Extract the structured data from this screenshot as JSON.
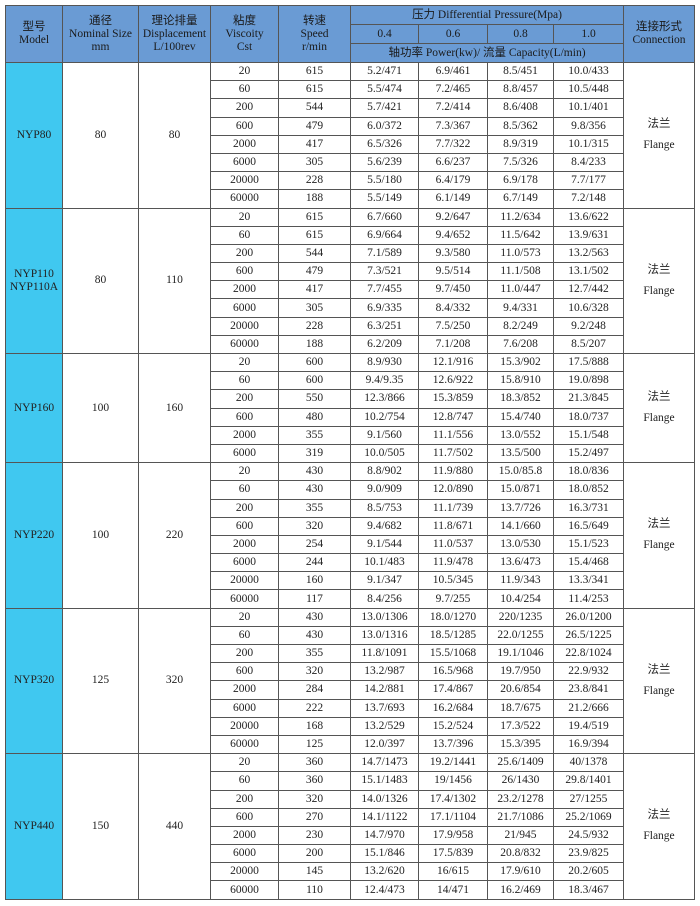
{
  "colors": {
    "header_bg": "#6a9bd4",
    "model_bg": "#40c8f0",
    "border": "#555555"
  },
  "header": {
    "model": {
      "cn": "型号",
      "en": "Model"
    },
    "nominal": {
      "cn": "通径",
      "en": "Nominal Size",
      "unit": "mm"
    },
    "displacement": {
      "cn": "理论排量",
      "en": "Displacement",
      "unit": "L/100rev"
    },
    "viscosity": {
      "cn": "粘度",
      "en": "Viscoity",
      "unit": "Cst"
    },
    "speed": {
      "cn": "转速",
      "en": "Speed",
      "unit": "r/min"
    },
    "pressure": {
      "label": "压力 Differential Pressure(Mpa)",
      "values": [
        "0.4",
        "0.6",
        "0.8",
        "1.0"
      ],
      "sublabel": "轴功率 Power(kw)/ 流量 Capacity(L/min)"
    },
    "connection": {
      "cn": "连接形式",
      "en": "Connection"
    }
  },
  "groups": [
    {
      "model": [
        "NYP80"
      ],
      "nominal": "80",
      "displacement": "80",
      "connection": {
        "cn": "法兰",
        "en": "Flange"
      },
      "rows": [
        [
          "20",
          "615",
          "5.2/471",
          "6.9/461",
          "8.5/451",
          "10.0/433"
        ],
        [
          "60",
          "615",
          "5.5/474",
          "7.2/465",
          "8.8/457",
          "10.5/448"
        ],
        [
          "200",
          "544",
          "5.7/421",
          "7.2/414",
          "8.6/408",
          "10.1/401"
        ],
        [
          "600",
          "479",
          "6.0/372",
          "7.3/367",
          "8.5/362",
          "9.8/356"
        ],
        [
          "2000",
          "417",
          "6.5/326",
          "7.7/322",
          "8.9/319",
          "10.1/315"
        ],
        [
          "6000",
          "305",
          "5.6/239",
          "6.6/237",
          "7.5/326",
          "8.4/233"
        ],
        [
          "20000",
          "228",
          "5.5/180",
          "6.4/179",
          "6.9/178",
          "7.7/177"
        ],
        [
          "60000",
          "188",
          "5.5/149",
          "6.1/149",
          "6.7/149",
          "7.2/148"
        ]
      ]
    },
    {
      "model": [
        "NYP110",
        "NYP110A"
      ],
      "nominal": "80",
      "displacement": "110",
      "connection": {
        "cn": "法兰",
        "en": "Flange"
      },
      "rows": [
        [
          "20",
          "615",
          "6.7/660",
          "9.2/647",
          "11.2/634",
          "13.6/622"
        ],
        [
          "60",
          "615",
          "6.9/664",
          "9.4/652",
          "11.5/642",
          "13.9/631"
        ],
        [
          "200",
          "544",
          "7.1/589",
          "9.3/580",
          "11.0/573",
          "13.2/563"
        ],
        [
          "600",
          "479",
          "7.3/521",
          "9.5/514",
          "11.1/508",
          "13.1/502"
        ],
        [
          "2000",
          "417",
          "7.7/455",
          "9.7/450",
          "11.0/447",
          "12.7/442"
        ],
        [
          "6000",
          "305",
          "6.9/335",
          "8.4/332",
          "9.4/331",
          "10.6/328"
        ],
        [
          "20000",
          "228",
          "6.3/251",
          "7.5/250",
          "8.2/249",
          "9.2/248"
        ],
        [
          "60000",
          "188",
          "6.2/209",
          "7.1/208",
          "7.6/208",
          "8.5/207"
        ]
      ]
    },
    {
      "model": [
        "NYP160"
      ],
      "nominal": "100",
      "displacement": "160",
      "connection": {
        "cn": "法兰",
        "en": "Flange"
      },
      "rows": [
        [
          "20",
          "600",
          "8.9/930",
          "12.1/916",
          "15.3/902",
          "17.5/888"
        ],
        [
          "60",
          "600",
          "9.4/9.35",
          "12.6/922",
          "15.8/910",
          "19.0/898"
        ],
        [
          "200",
          "550",
          "12.3/866",
          "15.3/859",
          "18.3/852",
          "21.3/845"
        ],
        [
          "600",
          "480",
          "10.2/754",
          "12.8/747",
          "15.4/740",
          "18.0/737"
        ],
        [
          "2000",
          "355",
          "9.1/560",
          "11.1/556",
          "13.0/552",
          "15.1/548"
        ],
        [
          "6000",
          "319",
          "10.0/505",
          "11.7/502",
          "13.5/500",
          "15.2/497"
        ]
      ]
    },
    {
      "model": [
        "NYP220"
      ],
      "nominal": "100",
      "displacement": "220",
      "connection": {
        "cn": "法兰",
        "en": "Flange"
      },
      "rows": [
        [
          "20",
          "430",
          "8.8/902",
          "11.9/880",
          "15.0/85.8",
          "18.0/836"
        ],
        [
          "60",
          "430",
          "9.0/909",
          "12.0/890",
          "15.0/871",
          "18.0/852"
        ],
        [
          "200",
          "355",
          "8.5/753",
          "11.1/739",
          "13.7/726",
          "16.3/731"
        ],
        [
          "600",
          "320",
          "9.4/682",
          "11.8/671",
          "14.1/660",
          "16.5/649"
        ],
        [
          "2000",
          "254",
          "9.1/544",
          "11.0/537",
          "13.0/530",
          "15.1/523"
        ],
        [
          "6000",
          "244",
          "10.1/483",
          "11.9/478",
          "13.6/473",
          "15.4/468"
        ],
        [
          "20000",
          "160",
          "9.1/347",
          "10.5/345",
          "11.9/343",
          "13.3/341"
        ],
        [
          "60000",
          "117",
          "8.4/256",
          "9.7/255",
          "10.4/254",
          "11.4/253"
        ]
      ]
    },
    {
      "model": [
        "NYP320"
      ],
      "nominal": "125",
      "displacement": "320",
      "connection": {
        "cn": "法兰",
        "en": "Flange"
      },
      "rows": [
        [
          "20",
          "430",
          "13.0/1306",
          "18.0/1270",
          "220/1235",
          "26.0/1200"
        ],
        [
          "60",
          "430",
          "13.0/1316",
          "18.5/1285",
          "22.0/1255",
          "26.5/1225"
        ],
        [
          "200",
          "355",
          "11.8/1091",
          "15.5/1068",
          "19.1/1046",
          "22.8/1024"
        ],
        [
          "600",
          "320",
          "13.2/987",
          "16.5/968",
          "19.7/950",
          "22.9/932"
        ],
        [
          "2000",
          "284",
          "14.2/881",
          "17.4/867",
          "20.6/854",
          "23.8/841"
        ],
        [
          "6000",
          "222",
          "13.7/693",
          "16.2/684",
          "18.7/675",
          "21.2/666"
        ],
        [
          "20000",
          "168",
          "13.2/529",
          "15.2/524",
          "17.3/522",
          "19.4/519"
        ],
        [
          "60000",
          "125",
          "12.0/397",
          "13.7/396",
          "15.3/395",
          "16.9/394"
        ]
      ]
    },
    {
      "model": [
        "NYP440"
      ],
      "nominal": "150",
      "displacement": "440",
      "connection": {
        "cn": "法兰",
        "en": "Flange"
      },
      "rows": [
        [
          "20",
          "360",
          "14.7/1473",
          "19.2/1441",
          "25.6/1409",
          "40/1378"
        ],
        [
          "60",
          "360",
          "15.1/1483",
          "19/1456",
          "26/1430",
          "29.8/1401"
        ],
        [
          "200",
          "320",
          "14.0/1326",
          "17.4/1302",
          "23.2/1278",
          "27/1255"
        ],
        [
          "600",
          "270",
          "14.1/1122",
          "17.1/1104",
          "21.7/1086",
          "25.2/1069"
        ],
        [
          "2000",
          "230",
          "14.7/970",
          "17.9/958",
          "21/945",
          "24.5/932"
        ],
        [
          "6000",
          "200",
          "15.1/846",
          "17.5/839",
          "20.8/832",
          "23.9/825"
        ],
        [
          "20000",
          "145",
          "13.2/620",
          "16/615",
          "17.9/610",
          "20.2/605"
        ],
        [
          "60000",
          "110",
          "12.4/473",
          "14/471",
          "16.2/469",
          "18.3/467"
        ]
      ]
    }
  ]
}
